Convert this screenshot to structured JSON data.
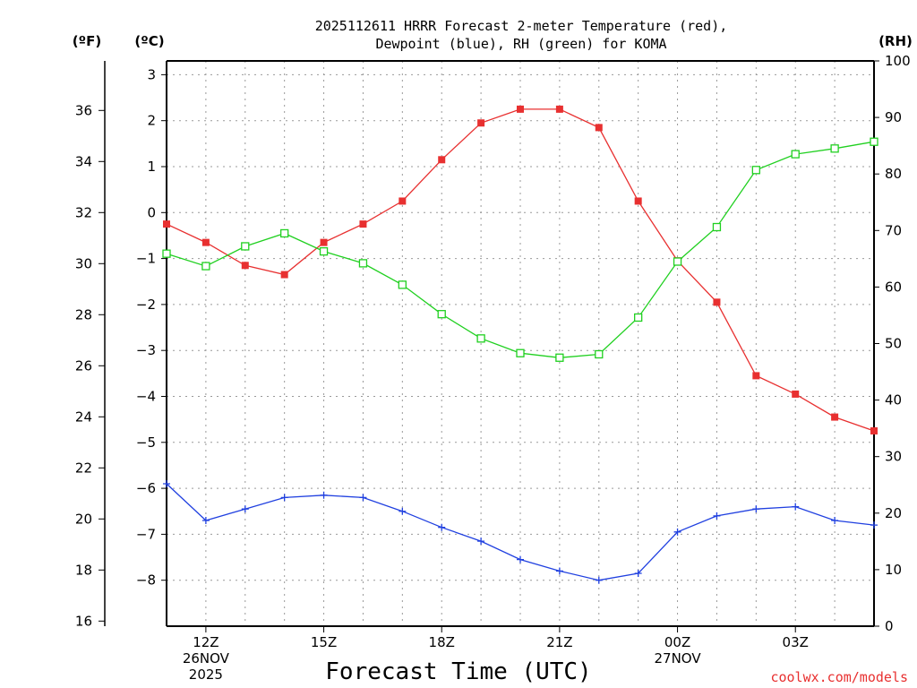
{
  "chart_data": {
    "type": "line",
    "title": [
      "2025112611 HRRR Forecast 2-meter Temperature (red),",
      "Dewpoint (blue), RH (green) for KOMA"
    ],
    "xlabel": "Forecast Time (UTC)",
    "credit": "coolwx.com/models",
    "colors": {
      "temperature": "#e83030",
      "dewpoint": "#2040e0",
      "rh": "#20d020",
      "grid": "#999999"
    },
    "units": {
      "fahrenheit": "(ºF)",
      "celsius": "(ºC)",
      "rh": "(RH)"
    },
    "x": {
      "start_hour": 11,
      "end_hour": 29,
      "ticks": [
        {
          "hour": 12,
          "lines": [
            "12Z",
            "26NOV",
            "2025"
          ]
        },
        {
          "hour": 15,
          "lines": [
            "15Z"
          ]
        },
        {
          "hour": 18,
          "lines": [
            "18Z"
          ]
        },
        {
          "hour": 21,
          "lines": [
            "21Z"
          ]
        },
        {
          "hour": 24,
          "lines": [
            "00Z",
            "27NOV"
          ]
        },
        {
          "hour": 27,
          "lines": [
            "03Z"
          ]
        }
      ]
    },
    "celsius_axis": {
      "ylim": [
        -9.0,
        3.3
      ],
      "ticks": [
        "3",
        "2",
        "1",
        "0",
        "−1",
        "−2",
        "−3",
        "−4",
        "−5",
        "−6",
        "−7",
        "−8"
      ],
      "tick_values": [
        3,
        2,
        1,
        0,
        -1,
        -2,
        -3,
        -4,
        -5,
        -6,
        -7,
        -8
      ]
    },
    "fahrenheit_axis": {
      "ticks": [
        "36",
        "34",
        "32",
        "30",
        "28",
        "26",
        "24",
        "22",
        "20",
        "18",
        "16"
      ],
      "tick_values": [
        36,
        34,
        32,
        30,
        28,
        26,
        24,
        22,
        20,
        18,
        16
      ]
    },
    "rh_axis": {
      "ylim": [
        0,
        100
      ],
      "ticks": [
        "100",
        "90",
        "80",
        "70",
        "60",
        "50",
        "40",
        "30",
        "20",
        "10",
        "0"
      ],
      "tick_values": [
        100,
        90,
        80,
        70,
        60,
        50,
        40,
        30,
        20,
        10,
        0
      ]
    },
    "series": [
      {
        "name": "Temperature (red)",
        "key": "temperature",
        "unit": "C",
        "marker": "filled-square",
        "hours": [
          11,
          12,
          13,
          14,
          15,
          16,
          17,
          18,
          19,
          20,
          21,
          22,
          23,
          24,
          25,
          26,
          27,
          28,
          29
        ],
        "values": [
          -0.25,
          -0.65,
          -1.15,
          -1.35,
          -0.65,
          -0.25,
          0.25,
          1.15,
          1.95,
          2.25,
          2.25,
          1.85,
          0.25,
          -1.05,
          -1.95,
          -3.55,
          -3.95,
          -4.45,
          -4.75
        ]
      },
      {
        "name": "Dewpoint (blue)",
        "key": "dewpoint",
        "unit": "C",
        "marker": "plus",
        "hours": [
          11,
          12,
          13,
          14,
          15,
          16,
          17,
          18,
          19,
          20,
          21,
          22,
          23,
          24,
          25,
          26,
          27,
          28,
          29
        ],
        "values": [
          -5.9,
          -6.7,
          -6.45,
          -6.2,
          -6.15,
          -6.2,
          -6.5,
          -6.85,
          -7.15,
          -7.55,
          -7.8,
          -8.0,
          -7.85,
          -6.95,
          -6.6,
          -6.45,
          -6.4,
          -6.7,
          -6.8
        ]
      },
      {
        "name": "RH (green)",
        "key": "rh",
        "unit": "%",
        "marker": "open-square",
        "hours": [
          11,
          12,
          13,
          14,
          15,
          16,
          17,
          18,
          19,
          20,
          21,
          22,
          23,
          24,
          25,
          26,
          27,
          28,
          29
        ],
        "values": [
          65.9,
          63.7,
          67.2,
          69.5,
          66.3,
          64.2,
          60.4,
          55.2,
          50.9,
          48.3,
          47.5,
          48.1,
          54.6,
          64.5,
          70.6,
          80.7,
          83.5,
          84.5,
          85.7
        ]
      }
    ]
  }
}
